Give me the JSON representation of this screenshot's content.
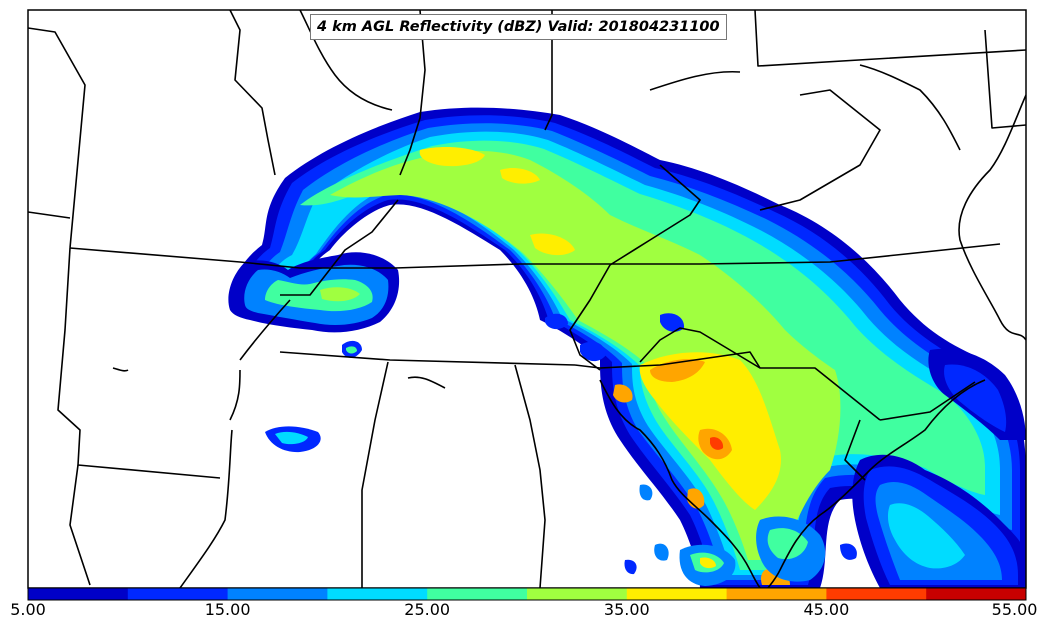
{
  "title": "4 km AGL Reflectivity (dBZ) Valid: 201804231100",
  "colorbar": {
    "labels": [
      "5.00",
      "15.00",
      "25.00",
      "35.00",
      "45.00",
      "55.00"
    ],
    "colors": [
      "#0000c8",
      "#0028ff",
      "#0082ff",
      "#00dcff",
      "#40ffa0",
      "#a0ff40",
      "#ffee00",
      "#ffa500",
      "#ff3c00",
      "#c80000"
    ]
  },
  "chart_data": {
    "type": "heatmap",
    "title": "4 km AGL Reflectivity (dBZ) Valid: 201804231100",
    "colorbar_ticks": [
      5,
      15,
      25,
      35,
      45,
      55
    ],
    "levels": [
      5,
      10,
      15,
      20,
      25,
      30,
      35,
      40,
      45,
      50,
      55
    ]
  }
}
